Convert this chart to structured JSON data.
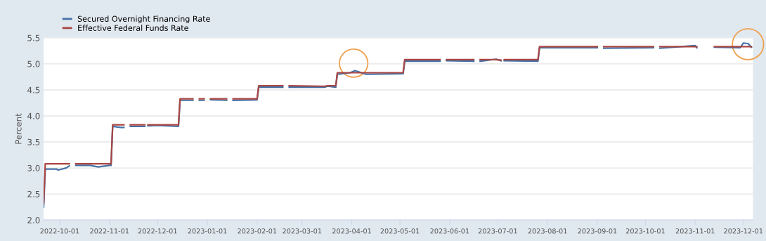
{
  "chart_data": {
    "type": "line",
    "ylabel": "Percent",
    "x": [
      "2022-09-21",
      "2022-09-22",
      "2022-09-29",
      "2022-09-30",
      "2022-10-05",
      "2022-10-07",
      "2022-10-10",
      "2022-10-11",
      "2022-10-20",
      "2022-10-25",
      "2022-11-01",
      "2022-11-02",
      "2022-11-03",
      "2022-11-08",
      "2022-11-10",
      "2022-11-11",
      "2022-11-14",
      "2022-11-23",
      "2022-11-24",
      "2022-11-25",
      "2022-12-01",
      "2022-12-14",
      "2022-12-15",
      "2022-12-23",
      "2022-12-26",
      "2022-12-27",
      "2022-12-30",
      "2023-01-02",
      "2023-01-03",
      "2023-01-13",
      "2023-01-16",
      "2023-01-17",
      "2023-02-01",
      "2023-02-02",
      "2023-02-17",
      "2023-02-20",
      "2023-02-21",
      "2023-03-15",
      "2023-03-17",
      "2023-03-22",
      "2023-03-23",
      "2023-03-31",
      "2023-04-03",
      "2023-04-06",
      "2023-04-10",
      "2023-05-03",
      "2023-05-04",
      "2023-05-26",
      "2023-05-29",
      "2023-05-30",
      "2023-06-16",
      "2023-06-19",
      "2023-06-20",
      "2023-06-30",
      "2023-07-03",
      "2023-07-04",
      "2023-07-05",
      "2023-07-26",
      "2023-07-27",
      "2023-09-01",
      "2023-09-04",
      "2023-09-05",
      "2023-10-06",
      "2023-10-09",
      "2023-10-10",
      "2023-11-01",
      "2023-11-02",
      "2023-11-10",
      "2023-11-13",
      "2023-11-29",
      "2023-12-01",
      "2023-12-04",
      "2023-12-06"
    ],
    "series": [
      {
        "name": "Secured Overnight Financing Rate",
        "color": "#4572a7",
        "values": [
          2.25,
          2.98,
          2.98,
          2.96,
          3.0,
          3.04,
          null,
          3.05,
          3.05,
          3.02,
          3.05,
          3.05,
          3.8,
          3.78,
          3.78,
          null,
          3.8,
          3.8,
          null,
          3.81,
          3.82,
          3.8,
          4.3,
          4.3,
          null,
          4.3,
          4.3,
          null,
          4.31,
          4.3,
          null,
          4.3,
          4.31,
          4.55,
          4.55,
          null,
          4.55,
          4.55,
          4.57,
          4.55,
          4.8,
          4.83,
          4.87,
          4.84,
          4.8,
          4.81,
          5.05,
          5.05,
          null,
          5.06,
          5.05,
          null,
          5.05,
          5.09,
          5.06,
          null,
          5.06,
          5.05,
          5.31,
          5.31,
          null,
          5.3,
          5.31,
          null,
          5.3,
          5.35,
          5.31,
          null,
          5.32,
          5.31,
          5.4,
          5.39,
          5.32
        ]
      },
      {
        "name": "Effective Federal Funds Rate",
        "color": "#aa4643",
        "values": [
          2.33,
          3.08,
          3.08,
          3.08,
          3.08,
          3.08,
          null,
          3.08,
          3.08,
          3.08,
          3.08,
          3.08,
          3.83,
          3.83,
          3.83,
          null,
          3.83,
          3.83,
          null,
          3.83,
          3.83,
          3.83,
          4.33,
          4.33,
          null,
          4.33,
          4.33,
          null,
          4.33,
          4.33,
          null,
          4.33,
          4.33,
          4.58,
          4.58,
          null,
          4.58,
          4.57,
          4.58,
          4.58,
          4.83,
          4.83,
          4.83,
          4.83,
          4.83,
          4.83,
          5.08,
          5.08,
          null,
          5.08,
          5.08,
          null,
          5.08,
          5.08,
          5.07,
          null,
          5.08,
          5.08,
          5.33,
          5.33,
          null,
          5.33,
          5.33,
          null,
          5.33,
          5.33,
          5.33,
          null,
          5.33,
          5.33,
          5.33,
          5.33,
          5.33
        ]
      }
    ],
    "xlim": [
      "2022-09-21",
      "2023-12-07"
    ],
    "xticks": [
      "2022-10-01",
      "2022-11-01",
      "2022-12-01",
      "2023-01-01",
      "2023-02-01",
      "2023-03-01",
      "2023-04-01",
      "2023-05-01",
      "2023-06-01",
      "2023-07-01",
      "2023-08-01",
      "2023-09-01",
      "2023-10-01",
      "2023-11-01",
      "2023-12-01"
    ],
    "ylim": [
      2.0,
      5.5
    ],
    "yticks": [
      {
        "value": 2.0,
        "label": "2.0"
      },
      {
        "value": 2.5,
        "label": "2.5"
      },
      {
        "value": 3.0,
        "label": "3.0"
      },
      {
        "value": 3.5,
        "label": "3.5"
      },
      {
        "value": 4.0,
        "label": "4.0"
      },
      {
        "value": 4.5,
        "label": "4.5"
      },
      {
        "value": 5.0,
        "label": "5.0"
      },
      {
        "value": 5.5,
        "label": "5.5"
      }
    ],
    "grid": "y",
    "legend": "top left",
    "marker": "none",
    "line_style": "solid"
  }
}
